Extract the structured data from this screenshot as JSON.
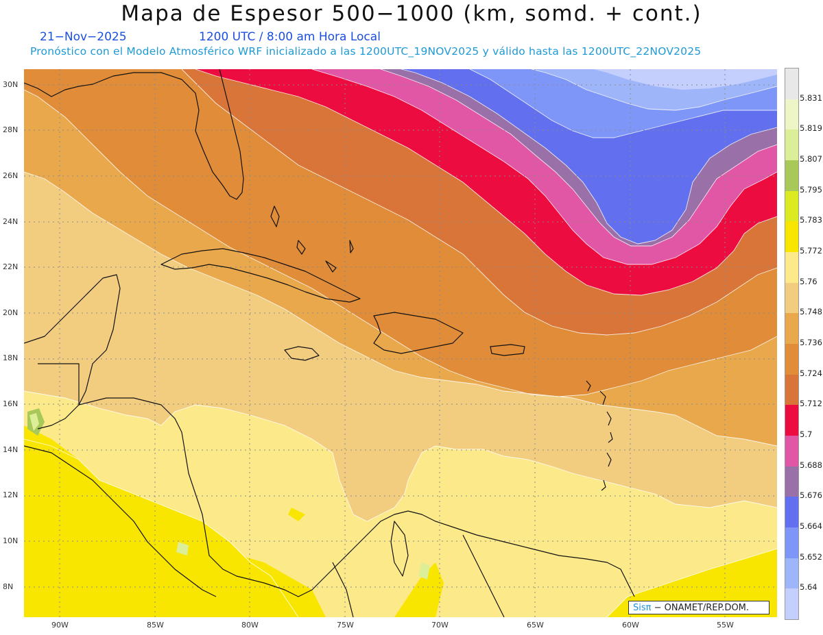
{
  "title": "Mapa de Espesor 500−1000 (km, somd. + cont.)",
  "date": "21−Nov−2025",
  "time": "1200 UTC / 8:00 am Hora Local",
  "forecast": "Pronóstico con el Modelo Atmosférico WRF inicializado a las 1200UTC_19NOV2025 y válido hasta las  1200UTC_22NOV2025",
  "credit_brand": "Sisπ",
  "credit_text": "− ONAMET/REP.DOM.",
  "lat_labels": [
    "30N",
    "28N",
    "26N",
    "24N",
    "22N",
    "20N",
    "18N",
    "16N",
    "14N",
    "12N",
    "10N",
    "8N"
  ],
  "lon_labels": [
    "90W",
    "85W",
    "80W",
    "75W",
    "70W",
    "65W",
    "60W",
    "55W"
  ],
  "colorbar": {
    "labels": [
      "5.831",
      "5.819",
      "5.807",
      "5.795",
      "5.783",
      "5.772",
      "5.76",
      "5.748",
      "5.736",
      "5.724",
      "5.712",
      "5.7",
      "5.688",
      "5.676",
      "5.664",
      "5.652",
      "5.64"
    ],
    "colors": [
      "#e8e8e8",
      "#eef6c8",
      "#dcef98",
      "#a8c85a",
      "#dcea20",
      "#f9e600",
      "#fce98a",
      "#f2cd80",
      "#eaa84c",
      "#e08c38",
      "#d97538",
      "#ec0c40",
      "#e256a6",
      "#9a70a8",
      "#6270f0",
      "#7e96f8",
      "#9fb5fa",
      "#c4cffd"
    ]
  },
  "map_colors": {
    "sea_base": "#fce98a",
    "yellow_deep": "#f9e600",
    "green": "#a8c85a",
    "light_green": "#dcef98",
    "c5748": "#f2cd80",
    "c5736": "#eaa84c",
    "c5724": "#e08c38",
    "c5712": "#d97538",
    "c5700": "#ec0c40",
    "c5688": "#e256a6",
    "c5676": "#9a70a8",
    "c5664": "#6270f0",
    "c5652": "#7e96f8",
    "c5640": "#9fb5fa",
    "c5628": "#c4cffd"
  }
}
